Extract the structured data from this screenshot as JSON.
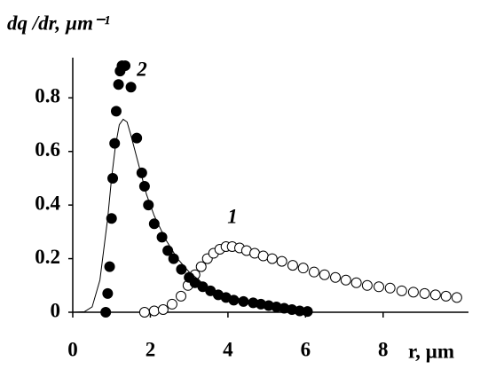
{
  "chart_data": {
    "type": "scatter-line",
    "y_label": "dq /dr, µm⁻¹",
    "x_label": "r, µm",
    "annotations": [
      "1",
      "2"
    ],
    "xlim": [
      0,
      10.2
    ],
    "ylim": [
      0,
      0.95
    ],
    "xticks": [
      0,
      2,
      4,
      6,
      8
    ],
    "yticks": [
      0,
      0.2,
      0.4,
      0.6,
      0.8
    ],
    "color": "#000000",
    "series": [
      {
        "marker": "open",
        "x": [
          1.85,
          2.1,
          2.33,
          2.56,
          2.79,
          2.97,
          3.15,
          3.31,
          3.47,
          3.63,
          3.79,
          3.95,
          4.11,
          4.3,
          4.48,
          4.69,
          4.91,
          5.14,
          5.39,
          5.67,
          5.94,
          6.22,
          6.49,
          6.77,
          7.04,
          7.31,
          7.59,
          7.89,
          8.18,
          8.48,
          8.78,
          9.07,
          9.35,
          9.62,
          9.9
        ],
        "values": [
          0,
          0.005,
          0.01,
          0.03,
          0.06,
          0.1,
          0.14,
          0.17,
          0.2,
          0.22,
          0.235,
          0.245,
          0.245,
          0.24,
          0.23,
          0.22,
          0.21,
          0.2,
          0.19,
          0.175,
          0.165,
          0.15,
          0.14,
          0.13,
          0.12,
          0.11,
          0.1,
          0.095,
          0.09,
          0.08,
          0.075,
          0.07,
          0.065,
          0.06,
          0.055
        ]
      },
      {
        "marker": "filled",
        "x": [
          0.85,
          0.9,
          0.95,
          1.0,
          1.03,
          1.08,
          1.12,
          1.18,
          1.22,
          1.27,
          1.35,
          1.5,
          1.65,
          1.78,
          1.85,
          1.95,
          2.1,
          2.3,
          2.45,
          2.6,
          2.8,
          3.0,
          3.15,
          3.35,
          3.55,
          3.75,
          3.95,
          4.15,
          4.4,
          4.65,
          4.85,
          5.05,
          5.25,
          5.45,
          5.65,
          5.85,
          6.05
        ],
        "values": [
          0,
          0.07,
          0.17,
          0.35,
          0.5,
          0.63,
          0.75,
          0.85,
          0.9,
          0.92,
          0.92,
          0.84,
          0.65,
          0.52,
          0.47,
          0.4,
          0.33,
          0.28,
          0.23,
          0.2,
          0.16,
          0.13,
          0.11,
          0.095,
          0.08,
          0.065,
          0.055,
          0.045,
          0.04,
          0.035,
          0.03,
          0.025,
          0.02,
          0.015,
          0.01,
          0.005,
          0.003
        ]
      },
      {
        "marker": "line",
        "x": [
          0,
          0.3,
          0.5,
          0.7,
          0.9,
          1.0,
          1.1,
          1.2,
          1.3,
          1.4,
          1.5,
          1.7,
          1.9,
          2.1,
          2.4,
          2.7,
          3.0,
          3.5,
          4.0,
          5.0,
          6.0
        ],
        "values": [
          0,
          0.002,
          0.02,
          0.12,
          0.35,
          0.5,
          0.62,
          0.7,
          0.72,
          0.71,
          0.66,
          0.55,
          0.44,
          0.36,
          0.27,
          0.2,
          0.15,
          0.09,
          0.06,
          0.025,
          0.01
        ]
      }
    ]
  }
}
